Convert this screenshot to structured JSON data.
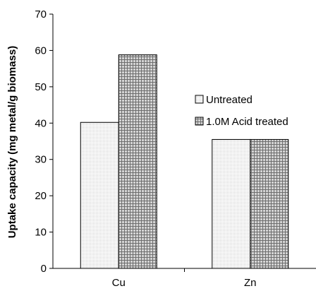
{
  "chart_data": {
    "type": "bar",
    "categories": [
      "Cu",
      "Zn"
    ],
    "series": [
      {
        "name": "Untreated",
        "values": [
          40.2,
          35.5
        ],
        "pattern": "fine-dots"
      },
      {
        "name": "1.0M Acid treated",
        "values": [
          58.8,
          35.5
        ],
        "pattern": "grid"
      }
    ],
    "title": "",
    "xlabel": "",
    "ylabel": "Uptake capacity (mg metal/g biomass)",
    "ylim": [
      0,
      70
    ],
    "yticks": [
      0,
      10,
      20,
      30,
      40,
      50,
      60,
      70
    ],
    "grid": false,
    "legend_position": "right"
  }
}
